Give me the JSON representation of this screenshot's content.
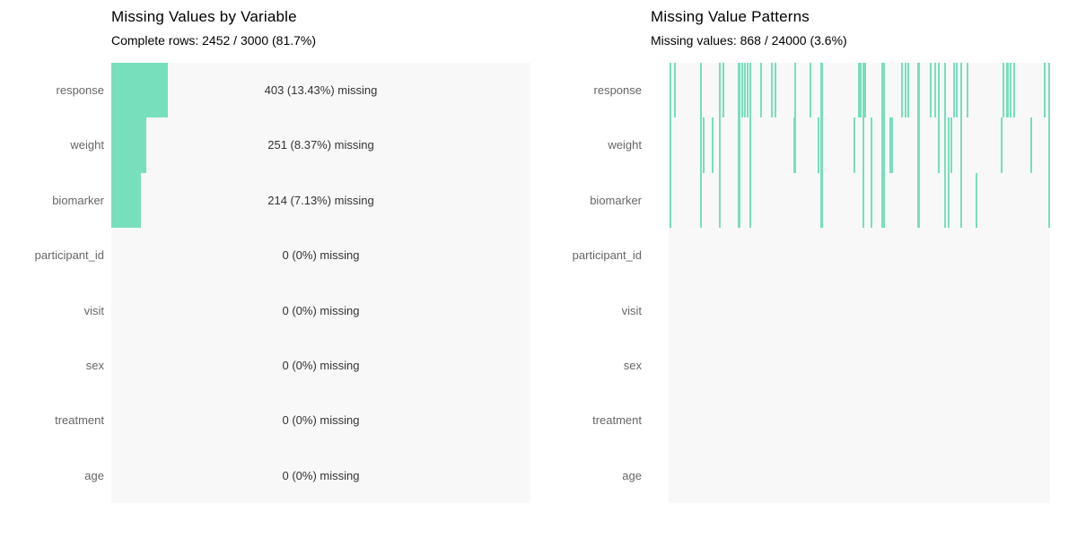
{
  "colors": {
    "accent_teal": "#77dfbb",
    "plot_background": "#f8f8f8",
    "row_label_gray": "#666666",
    "value_text": "#333333",
    "title_black": "#000000",
    "page_background": "#ffffff"
  },
  "chart_data": [
    {
      "type": "bar",
      "orientation": "horizontal",
      "title": "Missing Values by Variable",
      "subtitle": "Complete rows: 2452 / 3000 (81.7%)",
      "categories": [
        "response",
        "weight",
        "biomarker",
        "participant_id",
        "visit",
        "sex",
        "treatment",
        "age"
      ],
      "values_pct": [
        13.43,
        8.37,
        7.13,
        0,
        0,
        0,
        0,
        0
      ],
      "counts": [
        403,
        251,
        214,
        0,
        0,
        0,
        0,
        0
      ],
      "bar_labels": [
        "403 (13.43%) missing",
        "251 (8.37%) missing",
        "214 (7.13%) missing",
        "0 (0%) missing",
        "0 (0%) missing",
        "0 (0%) missing",
        "0 (0%) missing",
        "0 (0%) missing"
      ],
      "xlim": [
        0,
        100
      ],
      "grid": false,
      "legend": false
    },
    {
      "type": "heatmap",
      "title": "Missing Value Patterns",
      "subtitle": "Missing values: 868 / 24000 (3.6%)",
      "rows": [
        "response",
        "weight",
        "biomarker",
        "participant_id",
        "visit",
        "sex",
        "treatment",
        "age"
      ],
      "rows_with_missing": [
        "response",
        "weight",
        "biomarker"
      ],
      "legend": false,
      "missing_segments": [
        {
          "x": 0.005,
          "from": 0,
          "to": 2
        },
        {
          "x": 0.016,
          "from": 0,
          "to": 0
        },
        {
          "x": 0.085,
          "from": 0,
          "to": 2
        },
        {
          "x": 0.092,
          "from": 1,
          "to": 1
        },
        {
          "x": 0.115,
          "from": 1,
          "to": 1
        },
        {
          "x": 0.134,
          "from": 0,
          "to": 2
        },
        {
          "x": 0.144,
          "from": 0,
          "to": 0
        },
        {
          "x": 0.184,
          "from": 0,
          "to": 2,
          "w": 3
        },
        {
          "x": 0.193,
          "from": 0,
          "to": 0
        },
        {
          "x": 0.2,
          "from": 0,
          "to": 0
        },
        {
          "x": 0.207,
          "from": 0,
          "to": 0
        },
        {
          "x": 0.214,
          "from": 0,
          "to": 2
        },
        {
          "x": 0.242,
          "from": 0,
          "to": 0
        },
        {
          "x": 0.271,
          "from": 0,
          "to": 0
        },
        {
          "x": 0.28,
          "from": 0,
          "to": 0
        },
        {
          "x": 0.329,
          "from": 1,
          "to": 1
        },
        {
          "x": 0.332,
          "from": 0,
          "to": 1
        },
        {
          "x": 0.372,
          "from": 0,
          "to": 0
        },
        {
          "x": 0.393,
          "from": 1,
          "to": 1
        },
        {
          "x": 0.4,
          "from": 0,
          "to": 2,
          "w": 3
        },
        {
          "x": 0.487,
          "from": 1,
          "to": 1
        },
        {
          "x": 0.499,
          "from": 0,
          "to": 0
        },
        {
          "x": 0.504,
          "from": 0,
          "to": 0
        },
        {
          "x": 0.511,
          "from": 0,
          "to": 2
        },
        {
          "x": 0.515,
          "from": 0,
          "to": 0
        },
        {
          "x": 0.532,
          "from": 1,
          "to": 2
        },
        {
          "x": 0.562,
          "from": 0,
          "to": 2,
          "w": 4
        },
        {
          "x": 0.581,
          "from": 1,
          "to": 1
        },
        {
          "x": 0.586,
          "from": 1,
          "to": 1
        },
        {
          "x": 0.612,
          "from": 0,
          "to": 0
        },
        {
          "x": 0.621,
          "from": 0,
          "to": 0
        },
        {
          "x": 0.628,
          "from": 0,
          "to": 0
        },
        {
          "x": 0.656,
          "from": 0,
          "to": 2,
          "w": 3
        },
        {
          "x": 0.687,
          "from": 0,
          "to": 0
        },
        {
          "x": 0.699,
          "from": 0,
          "to": 0
        },
        {
          "x": 0.708,
          "from": 0,
          "to": 1
        },
        {
          "x": 0.725,
          "from": 0,
          "to": 2
        },
        {
          "x": 0.734,
          "from": 1,
          "to": 2
        },
        {
          "x": 0.741,
          "from": 1,
          "to": 1
        },
        {
          "x": 0.748,
          "from": 0,
          "to": 0
        },
        {
          "x": 0.755,
          "from": 0,
          "to": 0
        },
        {
          "x": 0.767,
          "from": 0,
          "to": 2
        },
        {
          "x": 0.784,
          "from": 0,
          "to": 0
        },
        {
          "x": 0.807,
          "from": 2,
          "to": 2
        },
        {
          "x": 0.873,
          "from": 1,
          "to": 1
        },
        {
          "x": 0.878,
          "from": 0,
          "to": 0
        },
        {
          "x": 0.887,
          "from": 0,
          "to": 0,
          "w": 3
        },
        {
          "x": 0.896,
          "from": 0,
          "to": 0
        },
        {
          "x": 0.906,
          "from": 0,
          "to": 0
        },
        {
          "x": 0.951,
          "from": 1,
          "to": 1
        },
        {
          "x": 0.986,
          "from": 0,
          "to": 0
        },
        {
          "x": 0.998,
          "from": 0,
          "to": 2
        }
      ]
    }
  ]
}
